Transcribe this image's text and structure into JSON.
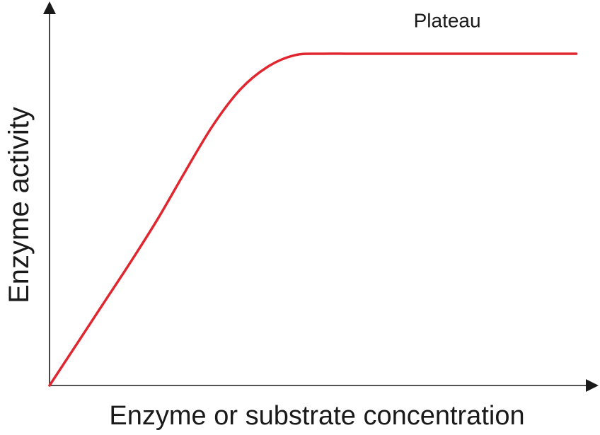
{
  "chart_data": {
    "type": "line",
    "title": "",
    "xlabel": "Enzyme or substrate concentration",
    "ylabel": "Enzyme activity",
    "xlim": [
      0,
      10
    ],
    "ylim": [
      0,
      10
    ],
    "grid": false,
    "ticks": false,
    "colors": {
      "line": "#e0262e",
      "axis": "#1a1a1a"
    },
    "series": [
      {
        "x": [
          0,
          0.5,
          1.0,
          1.5,
          2.0,
          2.5,
          3.0,
          3.5,
          4.0,
          4.5,
          5.0,
          5.5,
          6.0,
          6.5,
          7.0,
          7.5,
          8.0,
          8.5,
          9.0,
          9.67
        ],
        "y": [
          0,
          1.1,
          2.2,
          3.3,
          4.45,
          5.7,
          6.9,
          7.85,
          8.45,
          8.76,
          8.8,
          8.8,
          8.8,
          8.8,
          8.8,
          8.8,
          8.8,
          8.8,
          8.8,
          8.8
        ]
      }
    ],
    "annotations": [
      {
        "text": "Plateau",
        "x": 7.3,
        "y": 9.5
      }
    ]
  }
}
